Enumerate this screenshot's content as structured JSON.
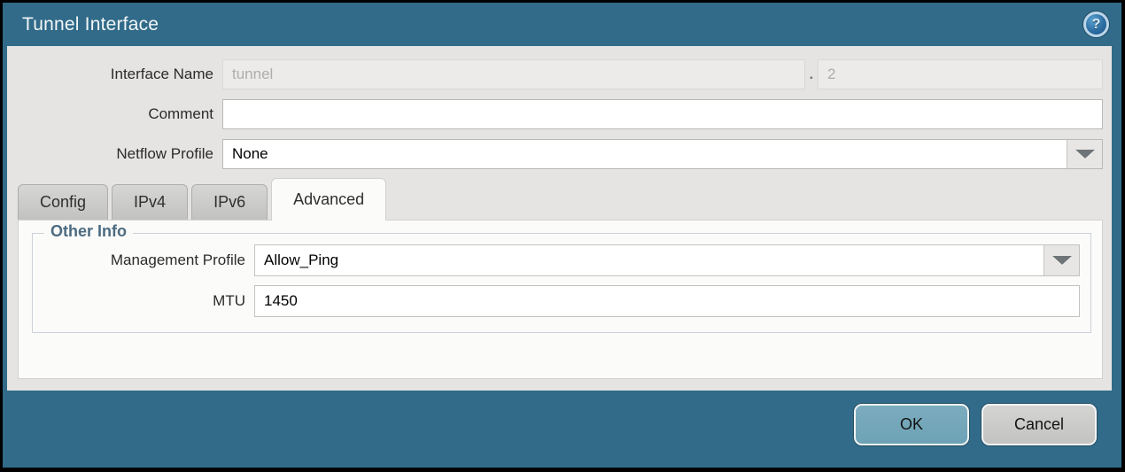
{
  "window": {
    "title": "Tunnel Interface"
  },
  "titlebar": {
    "help_glyph": "?"
  },
  "form": {
    "interface_name": {
      "label": "Interface Name",
      "value": "tunnel",
      "separator": ".",
      "suffix_value": "2"
    },
    "comment": {
      "label": "Comment",
      "value": ""
    },
    "netflow_profile": {
      "label": "Netflow Profile",
      "value": "None"
    }
  },
  "tabs": [
    {
      "label": "Config"
    },
    {
      "label": "IPv4"
    },
    {
      "label": "IPv6"
    },
    {
      "label": "Advanced"
    }
  ],
  "advanced_tab": {
    "section_title": "Other Info",
    "management_profile": {
      "label": "Management Profile",
      "value": "Allow_Ping"
    },
    "mtu": {
      "label": "MTU",
      "value": "1450"
    }
  },
  "footer": {
    "ok_label": "OK",
    "cancel_label": "Cancel"
  },
  "colors": {
    "titlebar": "#316b89",
    "ok_button": "#6da2b6",
    "section_title": "#4c6b80"
  }
}
